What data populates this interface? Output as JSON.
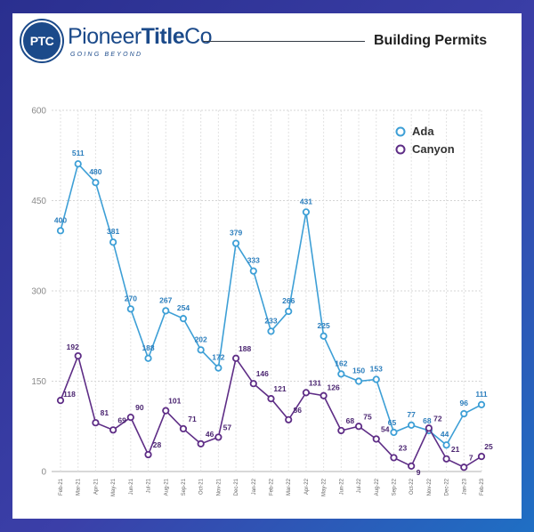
{
  "brand": {
    "badge": "PTC",
    "name_light": "Pioneer",
    "name_bold": "Title",
    "name_end": "Co",
    "tagline": "GOING BEYOND"
  },
  "colors": {
    "ada": "#3d9fd6",
    "canyon": "#5e2d86",
    "brand": "#1b4a8a"
  },
  "chart_data": {
    "type": "line",
    "title": "Building Permits",
    "xlabel": "",
    "ylabel": "",
    "ylim": [
      0,
      600
    ],
    "yticks": [
      0,
      150,
      300,
      450,
      600
    ],
    "grid": true,
    "legend_position": "top-right",
    "categories": [
      "Feb-21",
      "Mar-21",
      "Apr-21",
      "May-21",
      "Jun-21",
      "Jul-21",
      "Aug-21",
      "Sep-21",
      "Oct-21",
      "Nov-21",
      "Dec-21",
      "Jan-22",
      "Feb-22",
      "Mar-22",
      "Apr-22",
      "May-22",
      "Jun-22",
      "Jul-22",
      "Aug-22",
      "Sep-22",
      "Oct-22",
      "Nov-22",
      "Dec-22",
      "Jan-23",
      "Feb-23"
    ],
    "series": [
      {
        "name": "Ada",
        "values": [
          400,
          511,
          480,
          381,
          270,
          188,
          267,
          254,
          202,
          172,
          379,
          333,
          233,
          266,
          431,
          225,
          162,
          150,
          153,
          65,
          77,
          68,
          44,
          96,
          111
        ]
      },
      {
        "name": "Canyon",
        "values": [
          118,
          192,
          81,
          69,
          90,
          28,
          101,
          71,
          46,
          57,
          188,
          146,
          121,
          86,
          131,
          126,
          68,
          75,
          54,
          23,
          9,
          72,
          21,
          7,
          25
        ]
      }
    ]
  }
}
